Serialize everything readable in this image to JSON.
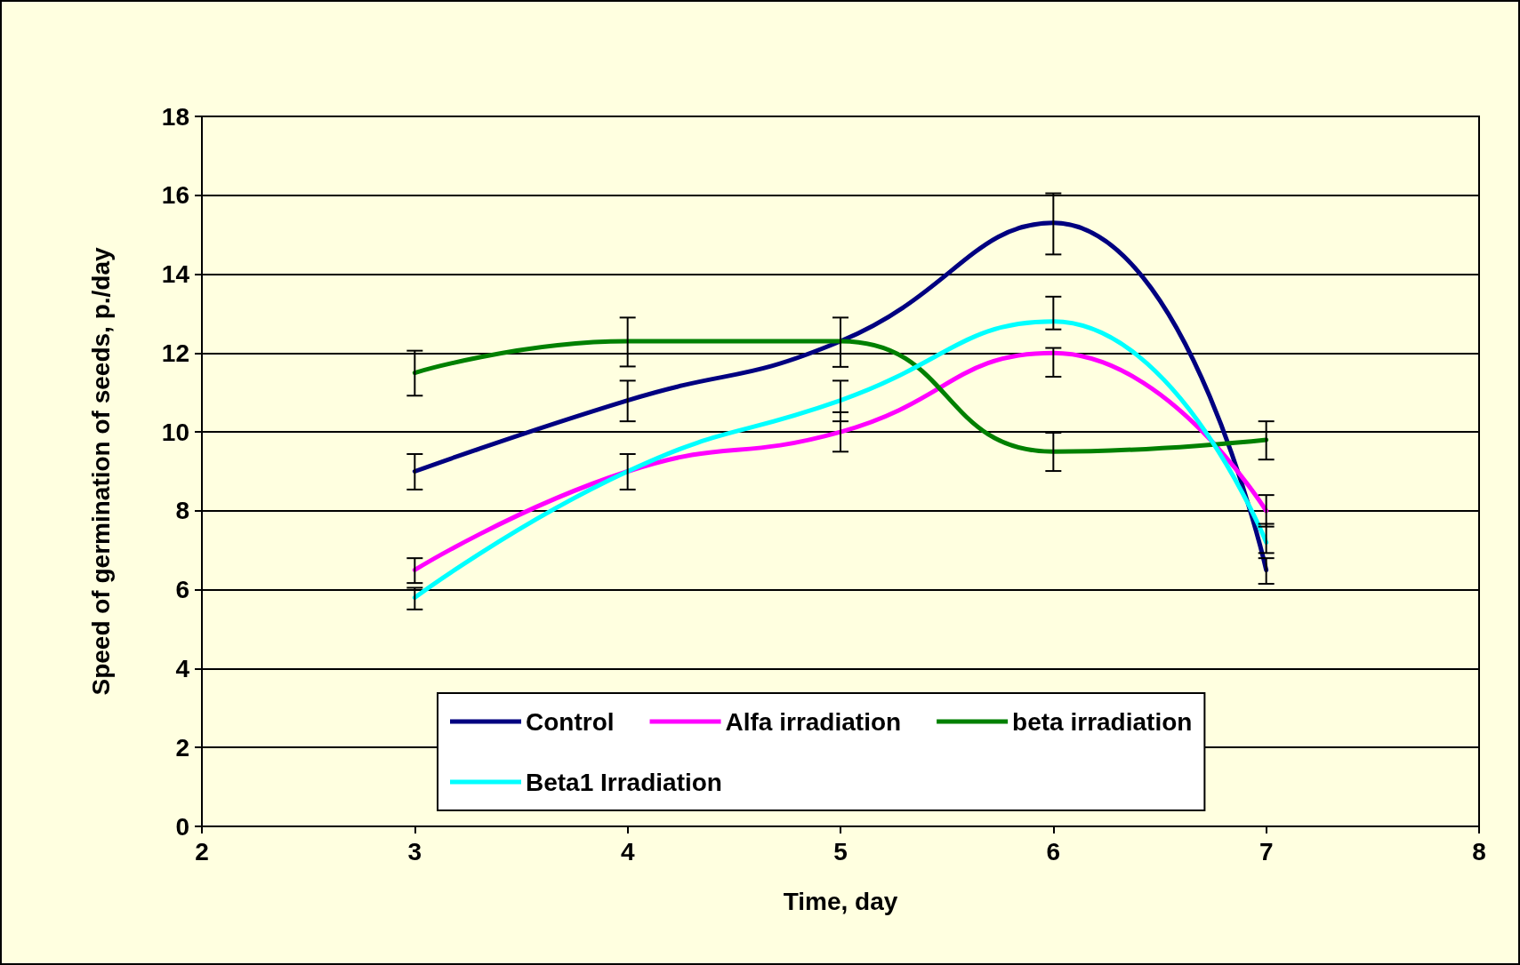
{
  "chart_data": {
    "type": "line",
    "xlabel": "Time, day",
    "ylabel": "Speed of germination of seeds, p./day",
    "x": [
      3,
      4,
      5,
      6,
      7
    ],
    "series": [
      {
        "name": "Control",
        "color": "#000080",
        "values": [
          9,
          10.8,
          12.3,
          15.3,
          6.5
        ],
        "errors": [
          [
            8.54,
            9.44
          ],
          [
            10.27,
            11.3
          ],
          [
            11.65,
            12.9
          ],
          [
            14.5,
            16.05
          ],
          [
            6.15,
            6.8
          ]
        ]
      },
      {
        "name": "Alfa irradiation",
        "color": "#ff00ff",
        "values": [
          6.5,
          9,
          10,
          12,
          8
        ],
        "errors": [
          [
            6.17,
            6.8
          ],
          [
            8.54,
            9.44
          ],
          [
            9.5,
            10.5
          ],
          [
            11.4,
            12.13
          ],
          [
            7.6,
            8.4
          ]
        ]
      },
      {
        "name": "beta irradiation",
        "color": "#008000",
        "values": [
          11.5,
          12.3,
          12.3,
          9.5,
          9.8
        ],
        "errors": [
          [
            10.92,
            12.06
          ],
          [
            11.66,
            12.9
          ],
          null,
          [
            9.01,
            9.98
          ],
          [
            9.3,
            10.27
          ]
        ]
      },
      {
        "name": "Beta1 Irradiation",
        "color": "#00ffff",
        "values": [
          5.8,
          9,
          10.8,
          12.8,
          7.2
        ],
        "errors": [
          [
            5.5,
            6.05
          ],
          null,
          [
            10.27,
            11.3
          ],
          [
            12.6,
            13.43
          ],
          [
            6.93,
            7.67
          ]
        ]
      }
    ],
    "xlim": [
      2,
      8
    ],
    "xticks": [
      2,
      3,
      4,
      5,
      6,
      7,
      8
    ],
    "ylim": [
      0,
      18
    ],
    "yticks": [
      0,
      2,
      4,
      6,
      8,
      10,
      12,
      14,
      16,
      18
    ],
    "grid": "y",
    "legend": "bottom",
    "marker": "none",
    "line_style": "solid"
  }
}
